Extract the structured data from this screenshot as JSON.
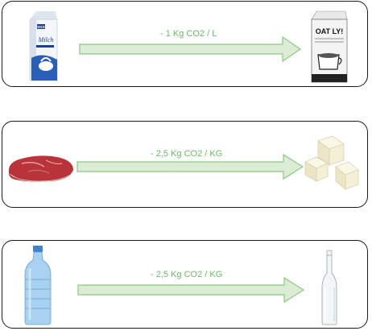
{
  "rows": [
    {
      "from": "milk-carton",
      "to": "oat-milk-carton",
      "label": "- 1 Kg CO2 / L",
      "from_brand": "Milch",
      "from_logo": "SGS",
      "to_brand": "OAT LY!"
    },
    {
      "from": "raw-beef",
      "to": "tofu",
      "label": "- 2,5 Kg CO2 / KG"
    },
    {
      "from": "plastic-bottle",
      "to": "glass-bottle",
      "label": "- 2,5 Kg CO2 / KG"
    }
  ],
  "colors": {
    "arrow_fill": "#dcedd6",
    "arrow_stroke": "#8cc783",
    "label": "#6fb86a",
    "border": "#1a1a1a"
  }
}
